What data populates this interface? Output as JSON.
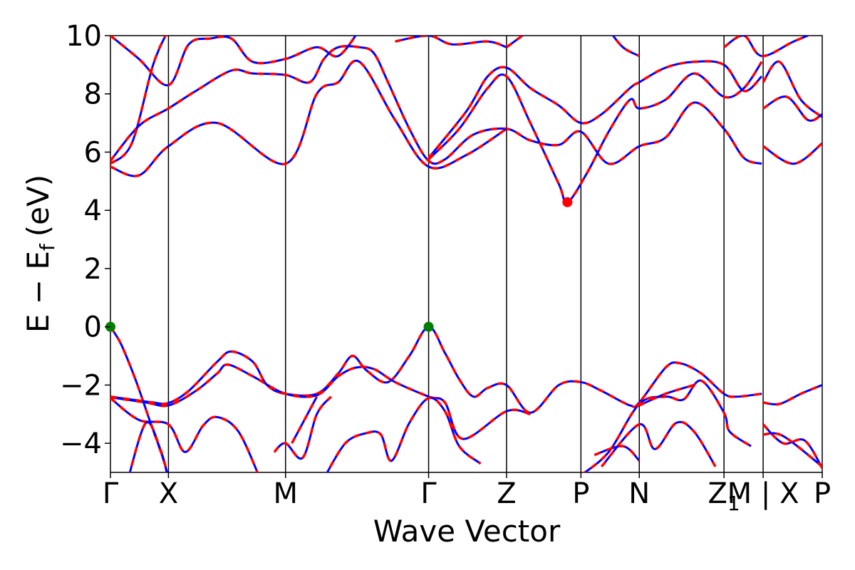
{
  "chart_data": {
    "type": "line",
    "title": "",
    "xlabel": "Wave Vector",
    "ylabel": "E − E",
    "ylabel_sub": "f",
    "ylabel_unit": "(eV)",
    "ylim": [
      -5,
      10
    ],
    "yticks": [
      {
        "value": 10,
        "label": "10"
      },
      {
        "value": 8,
        "label": "8"
      },
      {
        "value": 6,
        "label": "6"
      },
      {
        "value": 4,
        "label": "4"
      },
      {
        "value": 2,
        "label": "2"
      },
      {
        "value": 0,
        "label": "0"
      },
      {
        "value": -2,
        "label": "−2"
      },
      {
        "value": -4,
        "label": "−4"
      }
    ],
    "xlim": [
      0,
      10
    ],
    "kpoints": [
      {
        "label": "Γ",
        "x": 0.0
      },
      {
        "label": "X",
        "x": 0.815
      },
      {
        "label": "M",
        "x": 2.46
      },
      {
        "label": "Γ",
        "x": 4.47
      },
      {
        "label": "Z",
        "x": 5.565
      },
      {
        "label": "P",
        "x": 6.61
      },
      {
        "label": "N",
        "x": 7.43
      },
      {
        "label": "Z",
        "x": 8.62,
        "sub": "1"
      },
      {
        "label": "M | X",
        "x": 9.17
      },
      {
        "label": "P",
        "x": 10.0
      }
    ],
    "series_style": [
      {
        "color": "#0000ff",
        "width": 3
      },
      {
        "color": "#ff0000",
        "width": 3.5,
        "dash": "9,9"
      }
    ],
    "markers": [
      {
        "x": 0.0,
        "y": 0.0,
        "color": "#008000"
      },
      {
        "x": 4.47,
        "y": 0.0,
        "color": "#008000"
      },
      {
        "x": 6.42,
        "y": 4.28,
        "color": "#ff0000"
      }
    ],
    "bands": [
      [
        [
          0,
          0
        ],
        [
          0.15,
          -0.6
        ],
        [
          0.35,
          -1.8
        ],
        [
          0.55,
          -3.2
        ],
        [
          0.75,
          -4.6
        ],
        [
          0.815,
          -5.3
        ]
      ],
      [
        [
          0,
          -2.4
        ],
        [
          0.3,
          -2.5
        ],
        [
          0.6,
          -2.6
        ],
        [
          0.815,
          -2.62
        ],
        [
          1.1,
          -2.2
        ],
        [
          1.5,
          -1.2
        ],
        [
          1.7,
          -0.85
        ],
        [
          2.0,
          -1.2
        ],
        [
          2.2,
          -2.0
        ],
        [
          2.46,
          -2.3
        ],
        [
          2.9,
          -2.3
        ],
        [
          3.2,
          -1.6
        ],
        [
          3.4,
          -1.0
        ],
        [
          3.6,
          -1.5
        ],
        [
          3.9,
          -1.9
        ],
        [
          4.2,
          -1.0
        ],
        [
          4.47,
          0
        ],
        [
          4.7,
          -0.9
        ],
        [
          4.9,
          -1.8
        ],
        [
          5.1,
          -2.4
        ],
        [
          5.3,
          -2.1
        ],
        [
          5.565,
          -2.0
        ],
        [
          5.9,
          -2.95
        ],
        [
          6.3,
          -2.0
        ],
        [
          6.61,
          -1.9
        ],
        [
          6.9,
          -2.2
        ],
        [
          7.3,
          -2.7
        ],
        [
          7.43,
          -2.6
        ],
        [
          7.8,
          -1.4
        ],
        [
          8.0,
          -1.25
        ],
        [
          8.3,
          -1.6
        ],
        [
          8.62,
          -2.3
        ],
        [
          8.8,
          -2.4
        ],
        [
          9.15,
          -2.3
        ]
      ],
      [
        [
          9.17,
          -2.6
        ],
        [
          9.4,
          -2.65
        ],
        [
          9.7,
          -2.3
        ],
        [
          10,
          -2.0
        ]
      ],
      [
        [
          0,
          -2.42
        ],
        [
          0.5,
          -2.6
        ],
        [
          0.815,
          -2.7
        ],
        [
          1.2,
          -2.2
        ],
        [
          1.5,
          -1.6
        ],
        [
          1.65,
          -1.3
        ],
        [
          2.0,
          -1.7
        ],
        [
          2.46,
          -2.3
        ],
        [
          2.9,
          -2.35
        ],
        [
          3.2,
          -1.7
        ],
        [
          3.45,
          -1.4
        ],
        [
          3.7,
          -1.45
        ],
        [
          4.0,
          -1.9
        ],
        [
          4.47,
          -2.4
        ],
        [
          4.7,
          -2.6
        ],
        [
          4.95,
          -3.85
        ],
        [
          5.565,
          -2.9
        ],
        [
          5.9,
          -3.0
        ]
      ],
      [
        [
          0,
          -2.45
        ],
        [
          0.4,
          -3.2
        ],
        [
          0.815,
          -3.35
        ],
        [
          1.05,
          -4.3
        ],
        [
          1.3,
          -3.4
        ],
        [
          1.5,
          -3.1
        ],
        [
          1.8,
          -3.6
        ],
        [
          2.1,
          -5.2
        ]
      ],
      [
        [
          0.25,
          -5.2
        ],
        [
          0.5,
          -3.3
        ],
        [
          0.7,
          -4.2
        ],
        [
          0.815,
          -5.2
        ]
      ],
      [
        [
          2.3,
          -4.3
        ],
        [
          2.46,
          -4.0
        ],
        [
          2.7,
          -4.5
        ],
        [
          2.9,
          -3.0
        ],
        [
          3.1,
          -2.4
        ]
      ],
      [
        [
          2.55,
          -4.0
        ],
        [
          2.9,
          -2.4
        ]
      ],
      [
        [
          3.0,
          -5.2
        ],
        [
          3.3,
          -4.0
        ],
        [
          3.6,
          -3.65
        ],
        [
          3.8,
          -3.7
        ],
        [
          3.95,
          -4.6
        ],
        [
          4.2,
          -3.3
        ],
        [
          4.47,
          -2.45
        ],
        [
          4.7,
          -2.9
        ],
        [
          4.9,
          -4.1
        ],
        [
          5.2,
          -4.7
        ]
      ],
      [
        [
          5.9,
          -5.1
        ],
        [
          6.3,
          -5.2
        ]
      ],
      [
        [
          6.61,
          -5.1
        ],
        [
          7.0,
          -4.3
        ],
        [
          7.43,
          -2.65
        ],
        [
          7.8,
          -2.4
        ],
        [
          8.05,
          -2.5
        ],
        [
          8.3,
          -1.85
        ],
        [
          8.62,
          -2.95
        ],
        [
          8.7,
          -3.6
        ],
        [
          9.0,
          -4.1
        ]
      ],
      [
        [
          7.43,
          -2.7
        ],
        [
          7.8,
          -2.3
        ],
        [
          8.2,
          -2.0
        ]
      ],
      [
        [
          6.9,
          -4.8
        ],
        [
          7.43,
          -3.35
        ],
        [
          7.65,
          -4.2
        ],
        [
          7.95,
          -3.3
        ],
        [
          8.2,
          -3.6
        ],
        [
          8.5,
          -4.8
        ]
      ],
      [
        [
          6.8,
          -4.4
        ],
        [
          7.2,
          -4.1
        ],
        [
          7.43,
          -4.6
        ]
      ],
      [
        [
          9.17,
          -3.35
        ],
        [
          9.45,
          -4.0
        ],
        [
          9.75,
          -3.9
        ],
        [
          10,
          -4.85
        ]
      ],
      [
        [
          9.17,
          -3.7
        ],
        [
          9.45,
          -3.75
        ],
        [
          10,
          -4.8
        ]
      ],
      [
        [
          0,
          5.7
        ],
        [
          0.4,
          6.9
        ],
        [
          0.815,
          7.5
        ],
        [
          1.2,
          8.1
        ],
        [
          1.7,
          8.8
        ],
        [
          2.0,
          8.7
        ],
        [
          2.46,
          8.65
        ],
        [
          2.8,
          8.4
        ],
        [
          3.0,
          9.2
        ],
        [
          3.2,
          9.6
        ],
        [
          3.5,
          9.6
        ],
        [
          3.7,
          9.4
        ],
        [
          3.9,
          8.4
        ],
        [
          4.2,
          6.8
        ],
        [
          4.47,
          5.7
        ],
        [
          4.7,
          5.75
        ],
        [
          5.1,
          6.6
        ],
        [
          5.565,
          6.8
        ],
        [
          5.9,
          6.4
        ],
        [
          6.3,
          6.25
        ],
        [
          6.61,
          6.7
        ],
        [
          7.0,
          5.6
        ],
        [
          7.43,
          6.2
        ],
        [
          7.8,
          6.5
        ],
        [
          8.2,
          7.7
        ],
        [
          8.62,
          6.8
        ],
        [
          8.9,
          5.8
        ],
        [
          9.15,
          5.6
        ]
      ],
      [
        [
          9.17,
          6.2
        ],
        [
          9.6,
          5.6
        ],
        [
          10,
          6.3
        ]
      ],
      [
        [
          0,
          5.5
        ],
        [
          0.4,
          5.2
        ],
        [
          0.815,
          6.2
        ],
        [
          1.5,
          7.0
        ],
        [
          2.46,
          5.6
        ],
        [
          2.9,
          8.0
        ],
        [
          3.2,
          8.4
        ],
        [
          3.5,
          9.1
        ],
        [
          4.0,
          7.1
        ],
        [
          4.47,
          5.5
        ],
        [
          5.0,
          5.9
        ],
        [
          5.565,
          6.8
        ]
      ],
      [
        [
          0,
          5.6
        ],
        [
          0.3,
          6.3
        ],
        [
          0.6,
          9.0
        ],
        [
          0.815,
          10.2
        ]
      ],
      [
        [
          0,
          10
        ],
        [
          0.4,
          9.2
        ],
        [
          0.815,
          8.3
        ],
        [
          1.1,
          9.7
        ],
        [
          1.4,
          9.9
        ],
        [
          1.7,
          9.9
        ],
        [
          2.0,
          9.1
        ],
        [
          2.46,
          9.2
        ],
        [
          2.9,
          9.6
        ],
        [
          3.2,
          9.3
        ],
        [
          3.5,
          10.2
        ]
      ],
      [
        [
          4.0,
          9.8
        ],
        [
          4.47,
          10
        ],
        [
          4.8,
          9.7
        ],
        [
          5.3,
          9.8
        ],
        [
          5.565,
          9.6
        ]
      ],
      [
        [
          4.47,
          5.8
        ],
        [
          5.0,
          7.4
        ],
        [
          5.3,
          8.6
        ],
        [
          5.565,
          8.9
        ],
        [
          5.9,
          8.2
        ],
        [
          6.3,
          7.6
        ],
        [
          6.61,
          7.0
        ],
        [
          6.9,
          7.3
        ],
        [
          7.3,
          8.2
        ],
        [
          7.43,
          8.4
        ],
        [
          7.8,
          8.9
        ],
        [
          8.2,
          9.1
        ],
        [
          8.62,
          9.0
        ],
        [
          8.9,
          8.1
        ],
        [
          9.15,
          8.6
        ]
      ],
      [
        [
          4.47,
          5.75
        ],
        [
          4.9,
          6.8
        ],
        [
          5.3,
          8.2
        ],
        [
          5.565,
          8.6
        ],
        [
          5.9,
          7.0
        ],
        [
          6.3,
          4.9
        ],
        [
          6.42,
          4.28
        ],
        [
          6.7,
          5.3
        ],
        [
          7.0,
          6.7
        ],
        [
          7.3,
          7.8
        ],
        [
          7.43,
          7.5
        ],
        [
          7.8,
          7.8
        ],
        [
          8.2,
          8.7
        ],
        [
          8.62,
          7.9
        ],
        [
          8.9,
          8.2
        ],
        [
          9.15,
          9.1
        ]
      ],
      [
        [
          9.17,
          8.4
        ],
        [
          9.4,
          9.1
        ],
        [
          9.7,
          7.8
        ],
        [
          10,
          7.2
        ]
      ],
      [
        [
          9.17,
          7.5
        ],
        [
          9.5,
          7.9
        ],
        [
          9.8,
          7.1
        ],
        [
          10,
          7.3
        ]
      ],
      [
        [
          5.565,
          9.6
        ],
        [
          5.9,
          10.2
        ]
      ],
      [
        [
          7.0,
          10.2
        ],
        [
          7.2,
          9.6
        ],
        [
          7.43,
          9.3
        ]
      ],
      [
        [
          8.62,
          9.6
        ],
        [
          8.9,
          10.0
        ],
        [
          9.15,
          9.3
        ],
        [
          9.6,
          9.8
        ],
        [
          10,
          10.2
        ]
      ]
    ]
  }
}
